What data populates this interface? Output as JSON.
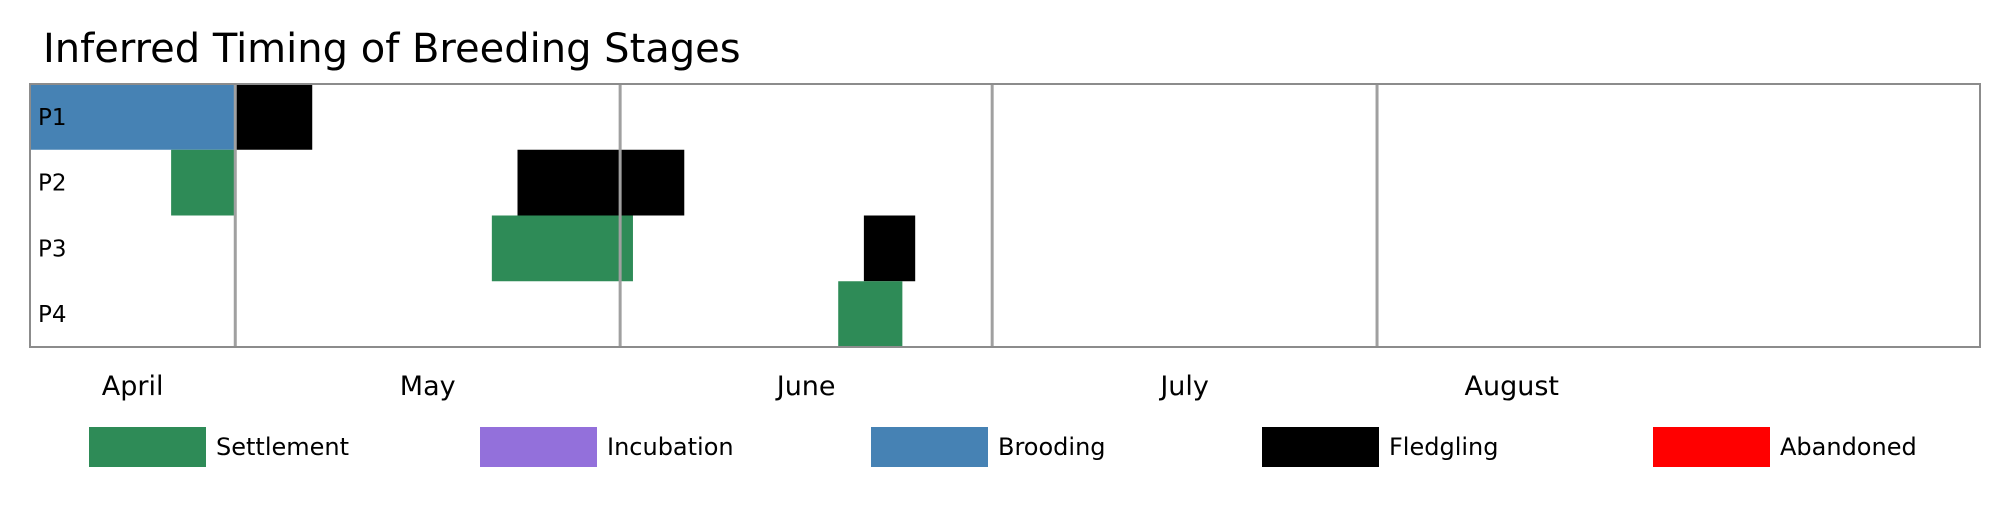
{
  "chart_data": {
    "type": "gantt",
    "title": "Inferred Timing of Breeding Stages",
    "x_start": "2023-04-01",
    "x_end": "2023-08-31",
    "months": [
      {
        "label": "April",
        "start": "2023-04-01",
        "end": "2023-04-17"
      },
      {
        "label": "May",
        "start": "2023-04-17",
        "end": "2023-05-17"
      },
      {
        "label": "June",
        "start": "2023-05-17",
        "end": "2023-06-15"
      },
      {
        "label": "July",
        "start": "2023-06-15",
        "end": "2023-07-15"
      },
      {
        "label": "August",
        "start": "2023-07-15",
        "end": "2023-08-05"
      }
    ],
    "rows": [
      "P1",
      "P2",
      "P3",
      "P4"
    ],
    "stages": [
      {
        "name": "Settlement",
        "color": "#2e8b57"
      },
      {
        "name": "Incubation",
        "color": "#9370db"
      },
      {
        "name": "Brooding",
        "color": "#4682b4"
      },
      {
        "name": "Fledgling",
        "color": "#000000"
      },
      {
        "name": "Abandoned",
        "color": "#ff0000"
      }
    ],
    "bars": [
      {
        "row": "P1",
        "stage": "Brooding",
        "start": "2023-04-01",
        "end": "2023-04-17"
      },
      {
        "row": "P1",
        "stage": "Fledgling",
        "start": "2023-04-17",
        "end": "2023-04-23"
      },
      {
        "row": "P2",
        "stage": "Settlement",
        "start": "2023-04-12",
        "end": "2023-04-17"
      },
      {
        "row": "P2",
        "stage": "Fledgling",
        "start": "2023-05-09",
        "end": "2023-05-22"
      },
      {
        "row": "P3",
        "stage": "Settlement",
        "start": "2023-05-07",
        "end": "2023-05-18"
      },
      {
        "row": "P3",
        "stage": "Fledgling",
        "start": "2023-06-05",
        "end": "2023-06-09"
      },
      {
        "row": "P4",
        "stage": "Settlement",
        "start": "2023-06-03",
        "end": "2023-06-08"
      }
    ]
  }
}
